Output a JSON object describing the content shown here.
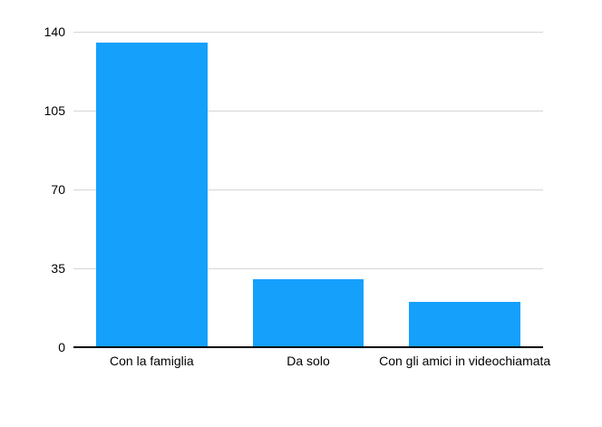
{
  "chart_data": {
    "type": "bar",
    "categories": [
      "Con la famiglia",
      "Da solo",
      "Con gli amici in videochiamata"
    ],
    "values": [
      135,
      30,
      20
    ],
    "title": "",
    "xlabel": "",
    "ylabel": "",
    "ylim": [
      0,
      140
    ],
    "yticks": [
      0,
      35,
      70,
      105,
      140
    ],
    "grid": "horizontal",
    "legend": "none",
    "bar_color": "#15A0FC",
    "gridline_color": "#D6D6D6",
    "axis_color": "#000000",
    "text_color": "#000000",
    "background_color": "#FFFFFF"
  }
}
